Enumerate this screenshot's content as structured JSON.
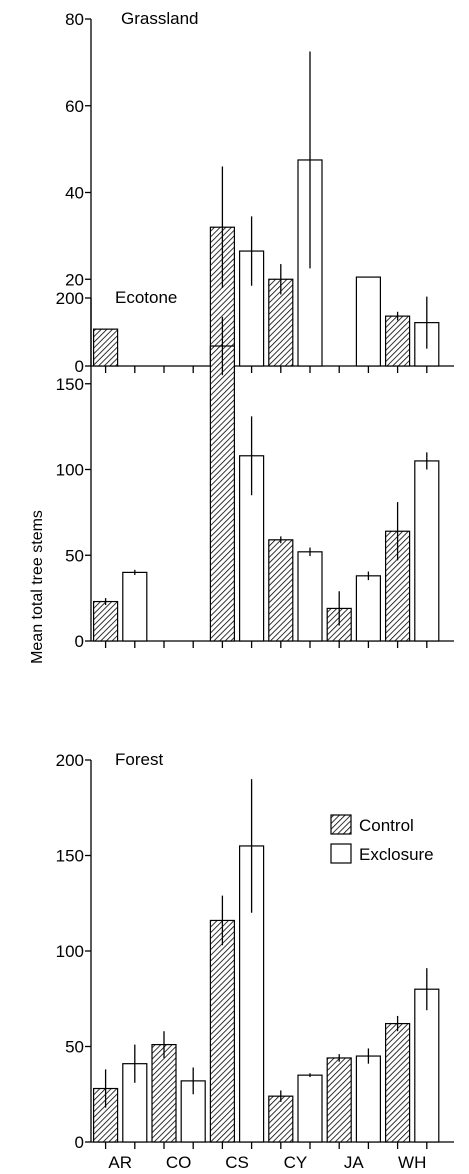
{
  "chart_data": {
    "type": "bar",
    "ylabel": "Mean total tree stems",
    "categories": [
      "AR",
      "CO",
      "CS",
      "CY",
      "JA",
      "WH"
    ],
    "series_names": [
      "Control",
      "Exclosure"
    ],
    "legend_position": "top-right of bottom panel",
    "panels": [
      {
        "title": "Grassland",
        "ylim": [
          0,
          80
        ],
        "yticks": [
          0,
          20,
          40,
          60,
          80
        ],
        "series": [
          {
            "name": "Control",
            "values": [
              8.5,
              0,
              32,
              20,
              0,
              11.5
            ],
            "errors": [
              null,
              null,
              14,
              3.5,
              null,
              1
            ]
          },
          {
            "name": "Exclosure",
            "values": [
              0,
              0,
              26.5,
              47.5,
              20.5,
              10
            ],
            "errors": [
              null,
              null,
              8,
              25,
              null,
              6
            ]
          }
        ]
      },
      {
        "title": "Ecotone",
        "ylim": [
          0,
          200
        ],
        "yticks": [
          0,
          50,
          100,
          150,
          200
        ],
        "series": [
          {
            "name": "Control",
            "values": [
              23,
              0,
              172,
              59,
              19,
              64
            ],
            "errors": [
              2,
              null,
              17,
              2,
              10,
              17
            ]
          },
          {
            "name": "Exclosure",
            "values": [
              40,
              0,
              108,
              52,
              38,
              105
            ],
            "errors": [
              1.5,
              null,
              23,
              2.5,
              2.5,
              5
            ]
          }
        ]
      },
      {
        "title": "Forest",
        "ylim": [
          0,
          200
        ],
        "yticks": [
          0,
          50,
          100,
          150,
          200
        ],
        "series": [
          {
            "name": "Control",
            "values": [
              28,
              51,
              116,
              24,
              44,
              62
            ],
            "errors": [
              10,
              7,
              13,
              3,
              2,
              4
            ]
          },
          {
            "name": "Exclosure",
            "values": [
              41,
              32,
              155,
              35,
              45,
              80
            ],
            "errors": [
              10,
              7,
              35,
              1,
              4,
              11
            ]
          }
        ]
      }
    ]
  }
}
